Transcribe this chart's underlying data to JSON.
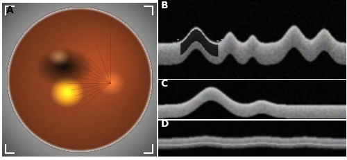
{
  "layout": {
    "fig_width": 5.0,
    "fig_height": 2.32,
    "dpi": 100
  },
  "panels": {
    "A": {
      "label": "A",
      "label_color": "black",
      "label_fontsize": 10,
      "label_fontweight": "bold",
      "bg_color": "#f0f0f0"
    },
    "B": {
      "label": "B",
      "label_color": "white",
      "label_fontsize": 10,
      "label_fontweight": "bold"
    },
    "C": {
      "label": "C",
      "label_color": "white",
      "label_fontsize": 10,
      "label_fontweight": "bold"
    },
    "D": {
      "label": "D",
      "label_color": "white",
      "label_fontsize": 10,
      "label_fontweight": "bold"
    }
  }
}
